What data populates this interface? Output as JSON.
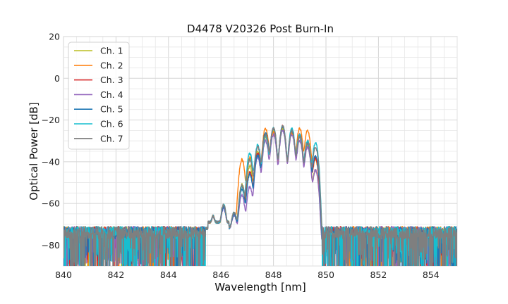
{
  "chart_data": {
    "type": "line",
    "title": "D4478 V20326 Post Burn-In",
    "xlabel": "Wavelength [nm]",
    "ylabel": "Optical Power [dB]",
    "xlim": [
      840,
      855
    ],
    "ylim": [
      -90,
      20
    ],
    "xticks": [
      "840",
      "842",
      "844",
      "846",
      "848",
      "850",
      "852",
      "854"
    ],
    "yticks": [
      "20",
      "0",
      "−20",
      "−40",
      "−60",
      "−80"
    ],
    "grid": true,
    "legend_position": "top-left",
    "noise_floor_db": -74,
    "series": [
      {
        "name": "Ch. 1",
        "color": "#bcbd22",
        "peaks": [
          [
            846.1,
            -62
          ],
          [
            846.5,
            -66
          ],
          [
            846.8,
            -51
          ],
          [
            847.1,
            -42
          ],
          [
            847.4,
            -35
          ],
          [
            847.7,
            -28
          ],
          [
            848.0,
            -25
          ],
          [
            848.35,
            -24
          ],
          [
            848.7,
            -25
          ],
          [
            849.0,
            -28
          ],
          [
            849.3,
            -32
          ],
          [
            849.6,
            -44
          ]
        ]
      },
      {
        "name": "Ch. 2",
        "color": "#ff7f0e",
        "peaks": [
          [
            846.1,
            -62
          ],
          [
            846.5,
            -66
          ],
          [
            846.8,
            -39
          ],
          [
            847.1,
            -38
          ],
          [
            847.4,
            -36
          ],
          [
            847.7,
            -24
          ],
          [
            848.0,
            -26
          ],
          [
            848.35,
            -23
          ],
          [
            848.7,
            -26
          ],
          [
            849.0,
            -24
          ],
          [
            849.3,
            -25
          ],
          [
            849.6,
            -39
          ]
        ]
      },
      {
        "name": "Ch. 3",
        "color": "#d62728",
        "peaks": [
          [
            846.1,
            -62
          ],
          [
            846.5,
            -66
          ],
          [
            846.8,
            -52
          ],
          [
            847.1,
            -45
          ],
          [
            847.4,
            -36
          ],
          [
            847.7,
            -27
          ],
          [
            848.0,
            -24
          ],
          [
            848.35,
            -23
          ],
          [
            848.7,
            -25
          ],
          [
            849.0,
            -27
          ],
          [
            849.3,
            -30
          ],
          [
            849.6,
            -38
          ]
        ]
      },
      {
        "name": "Ch. 4",
        "color": "#9467bd",
        "peaks": [
          [
            846.1,
            -63
          ],
          [
            846.5,
            -67
          ],
          [
            846.8,
            -56
          ],
          [
            847.1,
            -52
          ],
          [
            847.4,
            -38
          ],
          [
            847.7,
            -30
          ],
          [
            848.0,
            -27
          ],
          [
            848.35,
            -25
          ],
          [
            848.7,
            -27
          ],
          [
            849.0,
            -30
          ],
          [
            849.3,
            -33
          ],
          [
            849.6,
            -44
          ]
        ]
      },
      {
        "name": "Ch. 5",
        "color": "#1f77b4",
        "peaks": [
          [
            846.1,
            -62
          ],
          [
            846.5,
            -66
          ],
          [
            846.8,
            -53
          ],
          [
            847.1,
            -46
          ],
          [
            847.4,
            -37
          ],
          [
            847.7,
            -26
          ],
          [
            848.0,
            -24
          ],
          [
            848.35,
            -23
          ],
          [
            848.7,
            -25
          ],
          [
            849.0,
            -28
          ],
          [
            849.3,
            -31
          ],
          [
            849.6,
            -37
          ]
        ]
      },
      {
        "name": "Ch. 6",
        "color": "#17becf",
        "peaks": [
          [
            846.1,
            -61
          ],
          [
            846.5,
            -65
          ],
          [
            846.8,
            -52
          ],
          [
            847.1,
            -36
          ],
          [
            847.4,
            -32
          ],
          [
            847.7,
            -28
          ],
          [
            848.0,
            -24
          ],
          [
            848.35,
            -23
          ],
          [
            848.7,
            -24
          ],
          [
            849.0,
            -27
          ],
          [
            849.3,
            -30
          ],
          [
            849.6,
            -31
          ]
        ]
      },
      {
        "name": "Ch. 7",
        "color": "#7f7f7f",
        "peaks": [
          [
            846.1,
            -61
          ],
          [
            846.5,
            -65
          ],
          [
            846.8,
            -51
          ],
          [
            847.1,
            -39
          ],
          [
            847.4,
            -33
          ],
          [
            847.7,
            -27
          ],
          [
            848.0,
            -24
          ],
          [
            848.35,
            -23
          ],
          [
            848.7,
            -25
          ],
          [
            849.0,
            -28
          ],
          [
            849.3,
            -31
          ],
          [
            849.6,
            -33
          ]
        ]
      }
    ]
  }
}
